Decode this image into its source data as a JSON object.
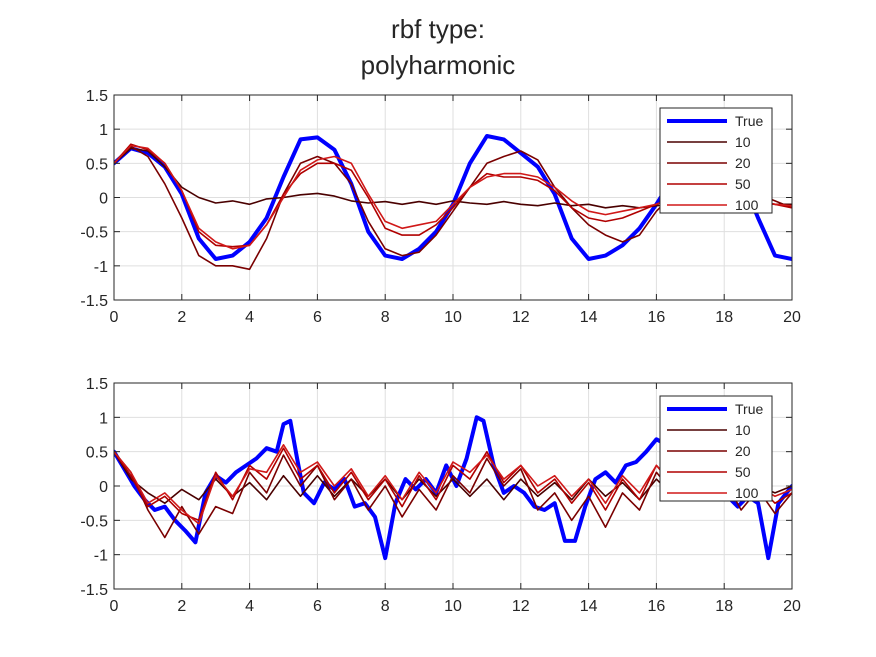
{
  "title_lines": [
    "rbf type:",
    "polyharmonic"
  ],
  "chart_data": [
    {
      "type": "line",
      "xlim": [
        0,
        20
      ],
      "ylim": [
        -1.5,
        1.5
      ],
      "xticks": [
        "0",
        "2",
        "4",
        "6",
        "8",
        "10",
        "12",
        "14",
        "16",
        "18",
        "20"
      ],
      "yticks": [
        "-1.5",
        "-1",
        "-0.5",
        "0",
        "0.5",
        "1",
        "1.5"
      ],
      "grid": true,
      "legend_position": "top-right",
      "series": [
        {
          "name": "True",
          "color": "#0000ff",
          "x": [
            0,
            0.5,
            1,
            1.5,
            2,
            2.5,
            3,
            3.5,
            4,
            4.5,
            5,
            5.5,
            6,
            6.5,
            7,
            7.5,
            8,
            8.5,
            9,
            9.5,
            10,
            10.5,
            11,
            11.5,
            12,
            12.5,
            13,
            13.5,
            14,
            14.5,
            15,
            15.5,
            16,
            16.5,
            17,
            17.5,
            18,
            18.5,
            19,
            19.5,
            20
          ],
          "y": [
            0.5,
            0.72,
            0.65,
            0.45,
            0.05,
            -0.6,
            -0.9,
            -0.85,
            -0.65,
            -0.3,
            0.3,
            0.85,
            0.88,
            0.7,
            0.2,
            -0.5,
            -0.85,
            -0.9,
            -0.75,
            -0.5,
            -0.1,
            0.5,
            0.9,
            0.85,
            0.65,
            0.45,
            0.05,
            -0.6,
            -0.9,
            -0.85,
            -0.7,
            -0.45,
            -0.1,
            0.3,
            0.5,
            0.6,
            0.55,
            0.3,
            -0.3,
            -0.85,
            -0.9
          ]
        },
        {
          "name": "10",
          "color": "#4a0000",
          "x": [
            0,
            0.5,
            1,
            1.5,
            2,
            2.5,
            3,
            3.5,
            4,
            4.5,
            5,
            5.5,
            6,
            6.5,
            7,
            7.5,
            8,
            8.5,
            9,
            9.5,
            10,
            10.5,
            11,
            11.5,
            12,
            12.5,
            13,
            13.5,
            14,
            14.5,
            15,
            15.5,
            16,
            16.5,
            17,
            17.5,
            18,
            18.5,
            19,
            19.5,
            20
          ],
          "y": [
            0.5,
            0.72,
            0.68,
            0.45,
            0.15,
            0,
            -0.08,
            -0.05,
            -0.1,
            -0.02,
            0,
            0.04,
            0.06,
            0.02,
            -0.05,
            -0.08,
            -0.06,
            -0.1,
            -0.06,
            -0.1,
            -0.05,
            -0.08,
            -0.1,
            -0.06,
            -0.1,
            -0.12,
            -0.08,
            -0.12,
            -0.1,
            -0.15,
            -0.12,
            -0.15,
            -0.12,
            -0.1,
            -0.15,
            -0.1,
            -0.12,
            -0.1,
            -0.08,
            -0.1,
            -0.1
          ]
        },
        {
          "name": "20",
          "color": "#7a0000",
          "x": [
            0,
            0.5,
            1,
            1.5,
            2,
            2.5,
            3,
            3.5,
            4,
            4.5,
            5,
            5.5,
            6,
            6.5,
            7,
            7.5,
            8,
            8.5,
            9,
            9.5,
            10,
            10.5,
            11,
            11.5,
            12,
            12.5,
            13,
            13.5,
            14,
            14.5,
            15,
            15.5,
            16,
            16.5,
            17,
            17.5,
            18,
            18.5,
            19,
            19.5,
            20
          ],
          "y": [
            0.5,
            0.75,
            0.6,
            0.2,
            -0.3,
            -0.85,
            -1.0,
            -1.0,
            -1.05,
            -0.6,
            0.05,
            0.5,
            0.6,
            0.5,
            0.2,
            -0.35,
            -0.75,
            -0.85,
            -0.8,
            -0.55,
            -0.2,
            0.15,
            0.5,
            0.6,
            0.68,
            0.55,
            0.15,
            -0.15,
            -0.4,
            -0.55,
            -0.65,
            -0.55,
            -0.2,
            0.05,
            0.25,
            0.1,
            0.05,
            0.1,
            0.05,
            -0.05,
            -0.15
          ]
        },
        {
          "name": "50",
          "color": "#b00000",
          "x": [
            0,
            0.5,
            1,
            1.5,
            2,
            2.5,
            3,
            3.5,
            4,
            4.5,
            5,
            5.5,
            6,
            6.5,
            7,
            7.5,
            8,
            8.5,
            9,
            9.5,
            10,
            10.5,
            11,
            11.5,
            12,
            12.5,
            13,
            13.5,
            14,
            14.5,
            15,
            15.5,
            16,
            16.5,
            17,
            17.5,
            18,
            18.5,
            19,
            19.5,
            20
          ],
          "y": [
            0.5,
            0.78,
            0.7,
            0.5,
            0.1,
            -0.5,
            -0.7,
            -0.72,
            -0.7,
            -0.4,
            0.05,
            0.35,
            0.5,
            0.5,
            0.4,
            0.0,
            -0.45,
            -0.55,
            -0.55,
            -0.4,
            -0.15,
            0.15,
            0.35,
            0.3,
            0.3,
            0.25,
            0.1,
            -0.15,
            -0.3,
            -0.35,
            -0.3,
            -0.2,
            -0.1,
            0.0,
            0.1,
            0.08,
            0.05,
            0.0,
            -0.05,
            -0.1,
            -0.15
          ]
        },
        {
          "name": "100",
          "color": "#d01818",
          "x": [
            0,
            0.5,
            1,
            1.5,
            2,
            2.5,
            3,
            3.5,
            4,
            4.5,
            5,
            5.5,
            6,
            6.5,
            7,
            7.5,
            8,
            8.5,
            9,
            9.5,
            10,
            10.5,
            11,
            11.5,
            12,
            12.5,
            13,
            13.5,
            14,
            14.5,
            15,
            15.5,
            16,
            16.5,
            17,
            17.5,
            18,
            18.5,
            19,
            19.5,
            20
          ],
          "y": [
            0.5,
            0.76,
            0.72,
            0.5,
            0.1,
            -0.45,
            -0.65,
            -0.75,
            -0.7,
            -0.4,
            0.0,
            0.4,
            0.55,
            0.6,
            0.5,
            0.05,
            -0.35,
            -0.45,
            -0.4,
            -0.35,
            -0.1,
            0.15,
            0.3,
            0.35,
            0.35,
            0.3,
            0.15,
            -0.05,
            -0.2,
            -0.25,
            -0.2,
            -0.15,
            -0.1,
            0.0,
            0.05,
            0.1,
            0.05,
            0.0,
            -0.05,
            -0.1,
            -0.12
          ]
        }
      ]
    },
    {
      "type": "line",
      "xlim": [
        0,
        20
      ],
      "ylim": [
        -1.5,
        1.5
      ],
      "xticks": [
        "0",
        "2",
        "4",
        "6",
        "8",
        "10",
        "12",
        "14",
        "16",
        "18",
        "20"
      ],
      "yticks": [
        "-1.5",
        "-1",
        "-0.5",
        "0",
        "0.5",
        "1",
        "1.5"
      ],
      "grid": true,
      "legend_position": "top-right",
      "series": [
        {
          "name": "True",
          "color": "#0000ff",
          "x": [
            0,
            0.3,
            0.6,
            0.9,
            1.2,
            1.5,
            1.8,
            2.1,
            2.4,
            2.7,
            3.0,
            3.3,
            3.6,
            3.9,
            4.2,
            4.5,
            4.8,
            5.0,
            5.2,
            5.4,
            5.6,
            5.9,
            6.2,
            6.5,
            6.8,
            7.1,
            7.4,
            7.7,
            8.0,
            8.3,
            8.6,
            8.9,
            9.2,
            9.5,
            9.8,
            10.1,
            10.4,
            10.7,
            10.9,
            11.2,
            11.5,
            11.8,
            12.1,
            12.4,
            12.7,
            13.0,
            13.3,
            13.6,
            13.9,
            14.2,
            14.5,
            14.8,
            15.1,
            15.4,
            15.7,
            16.0,
            16.3,
            16.6,
            16.9,
            17.2,
            17.5,
            17.8,
            18.1,
            18.4,
            18.7,
            19.0,
            19.3,
            19.6,
            20.0
          ],
          "y": [
            0.5,
            0.25,
            0.0,
            -0.2,
            -0.35,
            -0.3,
            -0.5,
            -0.65,
            -0.82,
            -0.1,
            0.15,
            0.05,
            0.2,
            0.3,
            0.4,
            0.55,
            0.5,
            0.9,
            0.95,
            0.4,
            -0.1,
            -0.25,
            0.05,
            -0.05,
            0.1,
            -0.3,
            -0.25,
            -0.45,
            -1.05,
            -0.25,
            0.1,
            -0.05,
            0.1,
            -0.1,
            0.3,
            0.0,
            0.4,
            1.0,
            0.95,
            0.3,
            -0.1,
            0.0,
            -0.1,
            -0.3,
            -0.35,
            -0.25,
            -0.8,
            -0.8,
            -0.3,
            0.1,
            0.2,
            0.05,
            0.3,
            0.35,
            0.5,
            0.68,
            0.6,
            0.4,
            0.3,
            0.1,
            -0.05,
            0.0,
            -0.15,
            -0.3,
            -0.15,
            -0.25,
            -1.05,
            -0.25,
            0.0
          ]
        },
        {
          "name": "10",
          "color": "#4a0000",
          "x": [
            0,
            0.5,
            1,
            1.5,
            2,
            2.5,
            3,
            3.5,
            4,
            4.5,
            5,
            5.5,
            6,
            6.5,
            7,
            7.5,
            8,
            8.5,
            9,
            9.5,
            10,
            10.5,
            11,
            11.5,
            12,
            12.5,
            13,
            13.5,
            14,
            14.5,
            15,
            15.5,
            16,
            16.5,
            17,
            17.5,
            18,
            18.5,
            19,
            19.5,
            20
          ],
          "y": [
            0.5,
            0.1,
            -0.1,
            -0.25,
            -0.05,
            -0.2,
            0.1,
            -0.15,
            0.05,
            -0.2,
            0.15,
            -0.15,
            0.15,
            -0.15,
            0.1,
            -0.15,
            0.1,
            -0.2,
            0.1,
            -0.15,
            0.1,
            -0.15,
            0.1,
            -0.2,
            0.1,
            -0.15,
            0.05,
            -0.2,
            0.1,
            -0.15,
            0.05,
            -0.2,
            0.1,
            -0.15,
            0.05,
            -0.15,
            0.1,
            -0.15,
            0.0,
            -0.1,
            0.0
          ]
        },
        {
          "name": "20",
          "color": "#7a0000",
          "x": [
            0,
            0.5,
            1,
            1.5,
            2,
            2.5,
            3,
            3.5,
            4,
            4.5,
            5,
            5.5,
            6,
            6.5,
            7,
            7.5,
            8,
            8.5,
            9,
            9.5,
            10,
            10.5,
            11,
            11.5,
            12,
            12.5,
            13,
            13.5,
            14,
            14.5,
            15,
            15.5,
            16,
            16.5,
            17,
            17.5,
            18,
            18.5,
            19,
            19.5,
            20
          ],
          "y": [
            0.5,
            0.2,
            -0.35,
            -0.75,
            -0.3,
            -0.7,
            -0.3,
            -0.4,
            0.2,
            -0.1,
            0.45,
            0.0,
            0.3,
            -0.2,
            0.1,
            -0.35,
            0.0,
            -0.45,
            -0.05,
            -0.35,
            0.15,
            -0.1,
            0.4,
            0.0,
            0.25,
            -0.35,
            -0.1,
            -0.5,
            -0.15,
            -0.6,
            -0.1,
            -0.35,
            0.2,
            -0.1,
            0.3,
            -0.15,
            0.1,
            -0.35,
            -0.05,
            -0.4,
            -0.1
          ]
        },
        {
          "name": "50",
          "color": "#b00000",
          "x": [
            0,
            0.5,
            1,
            1.5,
            2,
            2.5,
            3,
            3.5,
            4,
            4.5,
            5,
            5.5,
            6,
            6.5,
            7,
            7.5,
            8,
            8.5,
            9,
            9.5,
            10,
            10.5,
            11,
            11.5,
            12,
            12.5,
            13,
            13.5,
            14,
            14.5,
            15,
            15.5,
            16,
            16.5,
            17,
            17.5,
            18,
            18.5,
            19,
            19.5,
            20
          ],
          "y": [
            0.5,
            0.15,
            -0.3,
            -0.15,
            -0.4,
            -0.5,
            0.2,
            -0.2,
            0.3,
            0.1,
            0.55,
            0.1,
            0.3,
            -0.1,
            0.2,
            -0.2,
            0.1,
            -0.3,
            0.15,
            -0.2,
            0.3,
            0.1,
            0.5,
            0.05,
            0.3,
            -0.1,
            0.1,
            -0.25,
            0.05,
            -0.35,
            0.1,
            -0.2,
            0.3,
            0.0,
            0.3,
            -0.05,
            0.15,
            -0.2,
            0.0,
            -0.25,
            -0.1
          ]
        },
        {
          "name": "100",
          "color": "#d01818",
          "x": [
            0,
            0.5,
            1,
            1.5,
            2,
            2.5,
            3,
            3.5,
            4,
            4.5,
            5,
            5.5,
            6,
            6.5,
            7,
            7.5,
            8,
            8.5,
            9,
            9.5,
            10,
            10.5,
            11,
            11.5,
            12,
            12.5,
            13,
            13.5,
            14,
            14.5,
            15,
            15.5,
            16,
            16.5,
            17,
            17.5,
            18,
            18.5,
            19,
            19.5,
            20
          ],
          "y": [
            0.5,
            0.2,
            -0.25,
            -0.1,
            -0.35,
            -0.55,
            0.15,
            -0.15,
            0.25,
            0.2,
            0.6,
            0.2,
            0.35,
            0.0,
            0.25,
            -0.15,
            0.15,
            -0.2,
            0.2,
            -0.1,
            0.35,
            0.2,
            0.45,
            0.1,
            0.3,
            0.0,
            0.15,
            -0.15,
            0.1,
            -0.25,
            0.15,
            -0.1,
            0.3,
            0.05,
            0.25,
            0.0,
            0.15,
            -0.1,
            0.0,
            -0.15,
            -0.05
          ]
        }
      ]
    }
  ]
}
